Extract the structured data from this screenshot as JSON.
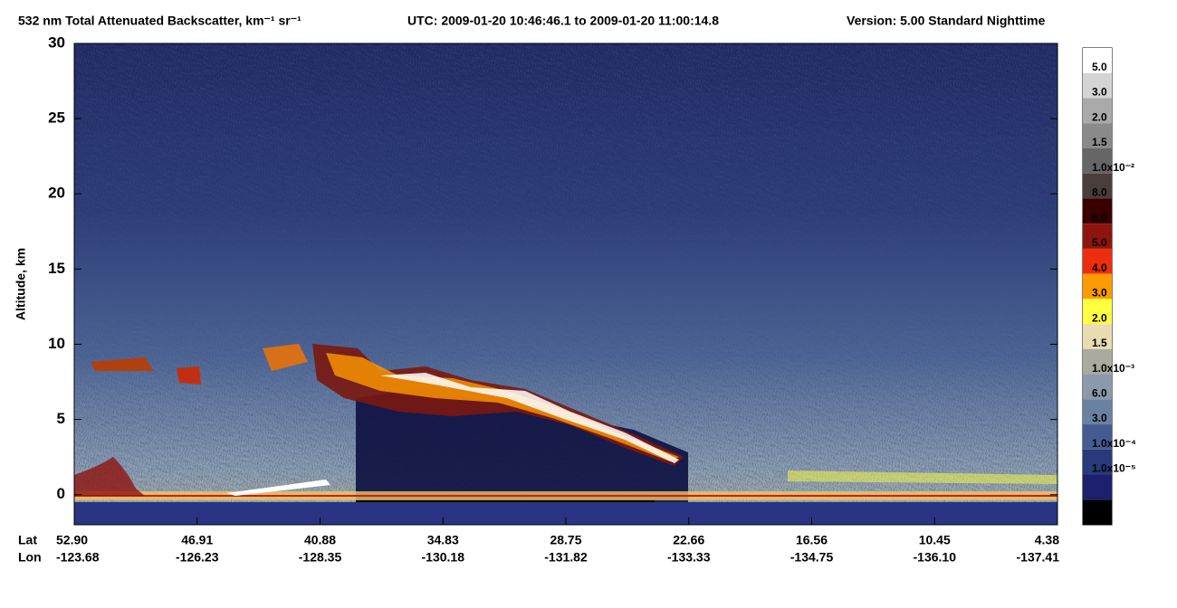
{
  "chart_data": {
    "type": "heatmap",
    "title": "532 nm Total Attenuated Backscatter, km⁻¹ sr⁻¹",
    "subtitle": "UTC:  2009-01-20 10:46:46.1  to  2009-01-20 11:00:14.8",
    "version": "Version: 5.00  Standard  Nighttime",
    "ylabel": "Altitude, km",
    "ylim": [
      -2,
      30
    ],
    "yticks": [
      0,
      5,
      10,
      15,
      20,
      25,
      30
    ],
    "x_row_labels": [
      "Lat",
      "Lon"
    ],
    "lat": [
      "52.90",
      "46.91",
      "40.88",
      "34.83",
      "28.75",
      "22.66",
      "16.56",
      "10.45",
      "4.38"
    ],
    "lon": [
      "-123.68",
      "-126.23",
      "-128.35",
      "-130.18",
      "-131.82",
      "-133.33",
      "-134.75",
      "-136.10",
      "-137.41"
    ],
    "colorbar": {
      "colors": [
        "#ffffff",
        "#d4d4d4",
        "#aaaaaa",
        "#8a8a8a",
        "#666666",
        "#4a3e3a",
        "#3a0000",
        "#8e1410",
        "#ec2e0c",
        "#ff9a00",
        "#ffff40",
        "#e8dcb0",
        "#aaaa9e",
        "#8a9aaa",
        "#6a82a2",
        "#445c92",
        "#283a7c",
        "#1c206e",
        "#000000"
      ],
      "labels": [
        "5.0",
        "3.0",
        "2.0",
        "1.5",
        "1.0x10⁻²",
        "8.0",
        "6.0",
        "5.0",
        "4.0",
        "3.0",
        "2.0",
        "1.5",
        "1.0x10⁻³",
        "6.0",
        "3.0",
        "1.0x10⁻⁴",
        "1.0x10⁻⁵"
      ]
    }
  }
}
